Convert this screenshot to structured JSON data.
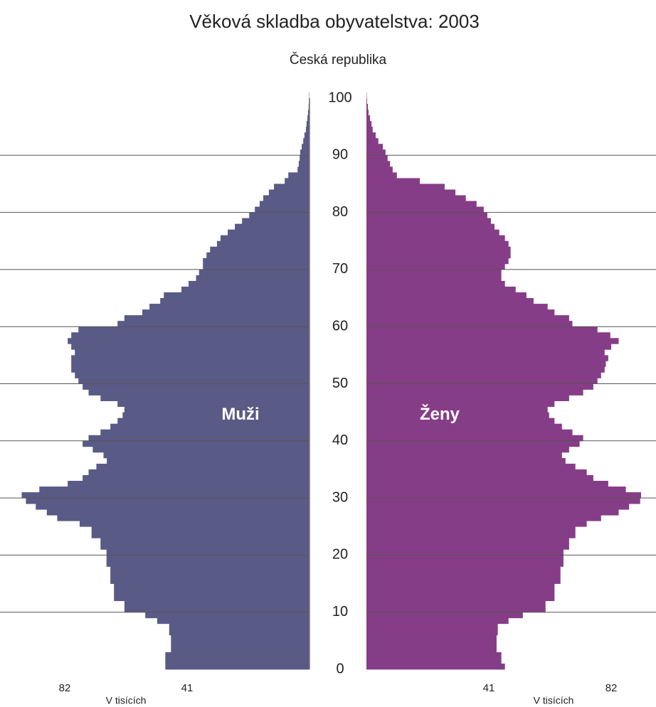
{
  "chart_data": {
    "type": "pyramid",
    "title": "Věková skladba obyvatelstva: 2003",
    "subtitle": "Česká republika",
    "xlabel": "V tisících",
    "xlim": [
      0,
      97
    ],
    "xticks": [
      41,
      82
    ],
    "ylim": [
      0,
      100
    ],
    "yticks": [
      0,
      10,
      20,
      30,
      40,
      50,
      60,
      70,
      80,
      90,
      100
    ],
    "grid": true,
    "y": [
      0,
      1,
      2,
      3,
      4,
      5,
      6,
      7,
      8,
      9,
      10,
      11,
      12,
      13,
      14,
      15,
      16,
      17,
      18,
      19,
      20,
      21,
      22,
      23,
      24,
      25,
      26,
      27,
      28,
      29,
      30,
      31,
      32,
      33,
      34,
      35,
      36,
      37,
      38,
      39,
      40,
      41,
      42,
      43,
      44,
      45,
      46,
      47,
      48,
      49,
      50,
      51,
      52,
      53,
      54,
      55,
      56,
      57,
      58,
      59,
      60,
      61,
      62,
      63,
      64,
      65,
      66,
      67,
      68,
      69,
      70,
      71,
      72,
      73,
      74,
      75,
      76,
      77,
      78,
      79,
      80,
      81,
      82,
      83,
      84,
      85,
      86,
      87,
      88,
      89,
      90,
      91,
      92,
      93,
      94,
      95,
      96,
      97,
      98,
      99,
      100
    ],
    "series": [
      {
        "name": "Muži",
        "color": "#5a5a87",
        "side": "left",
        "values": [
          48.3,
          48.3,
          48.3,
          46.4,
          46.4,
          46.4,
          47,
          47,
          51,
          55,
          62,
          62,
          65.5,
          65.5,
          65.5,
          66.7,
          66.7,
          66.7,
          68,
          68,
          68,
          70,
          70,
          73,
          73,
          77,
          84.5,
          88,
          91.7,
          95,
          96.4,
          90.5,
          81,
          76,
          74,
          71.4,
          67.9,
          69,
          72.6,
          76,
          74,
          70,
          66.7,
          64.3,
          62.6,
          62,
          64.3,
          70,
          74,
          76,
          77.4,
          78.6,
          79.8,
          79.8,
          79.8,
          78.6,
          79.8,
          81,
          79.8,
          77.4,
          64.3,
          62,
          56,
          53.6,
          50,
          48.8,
          42.9,
          40.5,
          38,
          37,
          35.7,
          35.7,
          34.5,
          33.3,
          31,
          29.8,
          27.4,
          25,
          22.6,
          20.2,
          18.3,
          16.7,
          15.5,
          13.6,
          11.9,
          8.3,
          7.1,
          4,
          3.6,
          3.3,
          3.1,
          2.6,
          2.1,
          1.7,
          1.2,
          1,
          0.7,
          0.5,
          0.3,
          0.2,
          0.1
        ]
      },
      {
        "name": "Ženy",
        "color": "#863d87",
        "side": "right",
        "values": [
          46.4,
          45.2,
          45.2,
          43.6,
          43.6,
          43.6,
          44,
          44,
          47.6,
          52.4,
          60,
          60,
          63,
          63,
          63,
          65,
          65,
          65,
          66,
          66,
          66,
          67.9,
          67.9,
          70,
          70,
          73.8,
          78.6,
          84.5,
          88,
          91.7,
          92,
          86.9,
          81,
          76,
          73.8,
          70,
          66.7,
          65.5,
          67.9,
          71.4,
          72.6,
          69,
          65.5,
          63,
          61.2,
          60.7,
          63,
          67.9,
          72.6,
          76,
          77.4,
          78.6,
          79.8,
          80.2,
          81,
          79.8,
          82,
          84.5,
          81.7,
          77.4,
          69,
          67.9,
          63,
          60.7,
          56,
          53.6,
          50,
          46.4,
          45.2,
          45.2,
          46.4,
          47.6,
          48.3,
          48.3,
          47.6,
          46.4,
          44.5,
          42.9,
          41.7,
          40.5,
          39.3,
          36.9,
          33.3,
          29.8,
          26.2,
          17.9,
          10.2,
          8.8,
          7.9,
          7.1,
          6.4,
          5.5,
          4,
          3.1,
          2.1,
          1.7,
          1.2,
          0.7,
          0.5,
          0.2,
          0.1
        ]
      }
    ]
  }
}
